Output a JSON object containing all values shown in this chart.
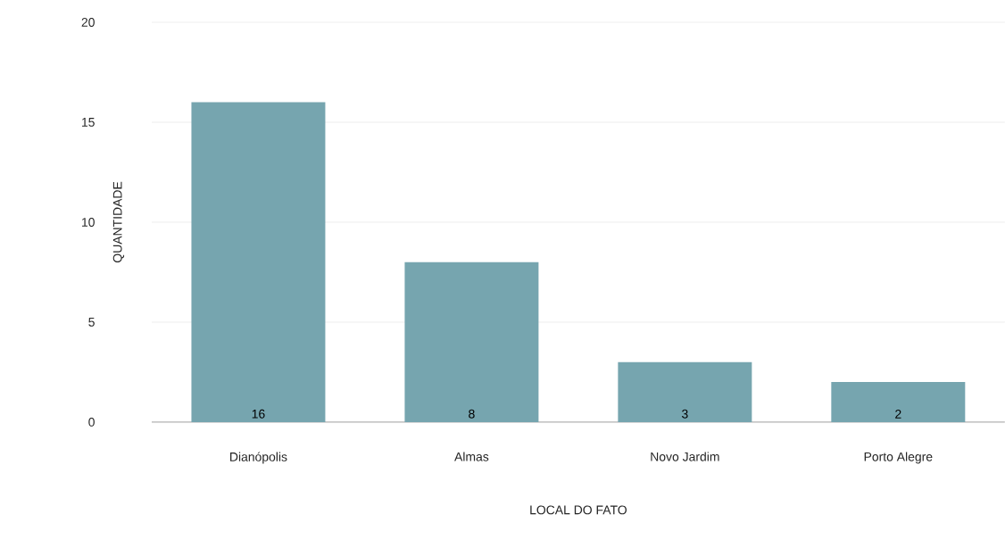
{
  "chart_data": {
    "type": "bar",
    "xlabel": "LOCAL DO FATO",
    "ylabel": "QUANTIDADE",
    "categories": [
      "Dianópolis",
      "Almas",
      "Novo Jardim",
      "Porto Alegre"
    ],
    "values": [
      16,
      8,
      3,
      2
    ],
    "value_labels": [
      "16",
      "8",
      "3",
      "2"
    ],
    "color": "#76a5af",
    "ylim": [
      0,
      20
    ],
    "yticks": [
      0,
      5,
      10,
      15,
      20
    ],
    "grid": "y"
  }
}
